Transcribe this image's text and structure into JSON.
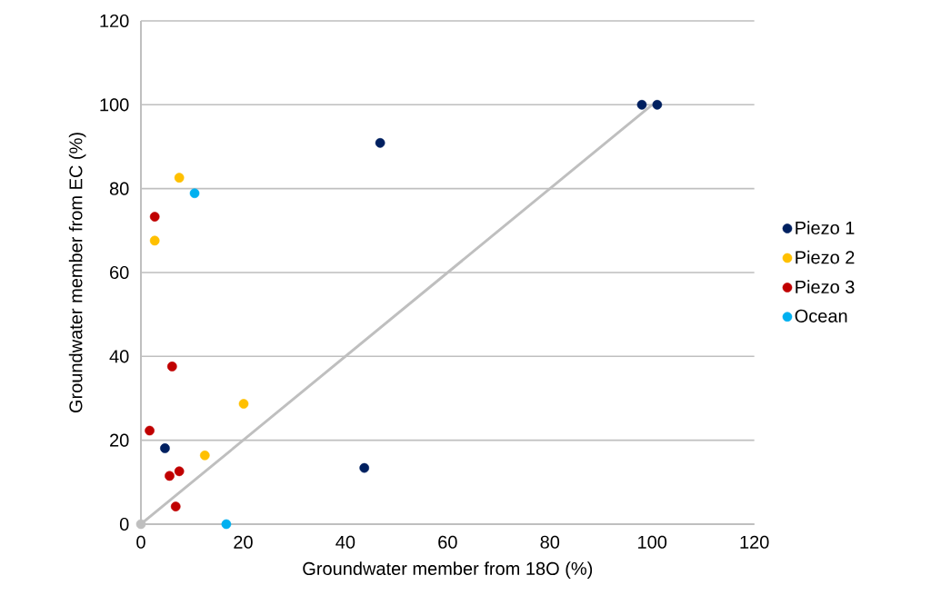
{
  "chart_data": {
    "type": "scatter",
    "xlabel": "Groundwater member from 18O (%)",
    "ylabel": "Groundwater member from EC  (%)",
    "xlim": [
      0,
      120
    ],
    "ylim": [
      0,
      120
    ],
    "xticks": [
      0,
      20,
      40,
      60,
      80,
      100,
      120
    ],
    "yticks": [
      0,
      20,
      40,
      60,
      80,
      100,
      120
    ],
    "grid": "y",
    "legend": "right",
    "marker": "circle",
    "series": [
      {
        "name": "Piezo 1",
        "color": "#002060",
        "x": [
          98,
          101,
          46.8,
          4.7,
          43.7
        ],
        "values": [
          100,
          100,
          90.9,
          18.1,
          13.4
        ]
      },
      {
        "name": "Piezo 2",
        "color": "#ffc000",
        "x": [
          7.5,
          2.7,
          20.1,
          12.5
        ],
        "values": [
          82.6,
          67.6,
          28.7,
          16.4
        ]
      },
      {
        "name": "Piezo 3",
        "color": "#c00000",
        "x": [
          2.7,
          6.1,
          1.7,
          5.6,
          7.5,
          6.8
        ],
        "values": [
          73.3,
          37.6,
          22.3,
          11.5,
          12.6,
          4.2
        ]
      },
      {
        "name": "Ocean",
        "color": "#00b0f0",
        "x": [
          10.5,
          16.7
        ],
        "values": [
          78.9,
          0
        ]
      },
      {
        "type": "line",
        "color": "#bfbfbf",
        "marker": "none",
        "line_style": "solid",
        "x": [
          0,
          100
        ],
        "values": [
          0,
          100
        ]
      },
      {
        "color": "#bfbfbf",
        "x": [
          0
        ],
        "values": [
          0
        ]
      }
    ]
  }
}
